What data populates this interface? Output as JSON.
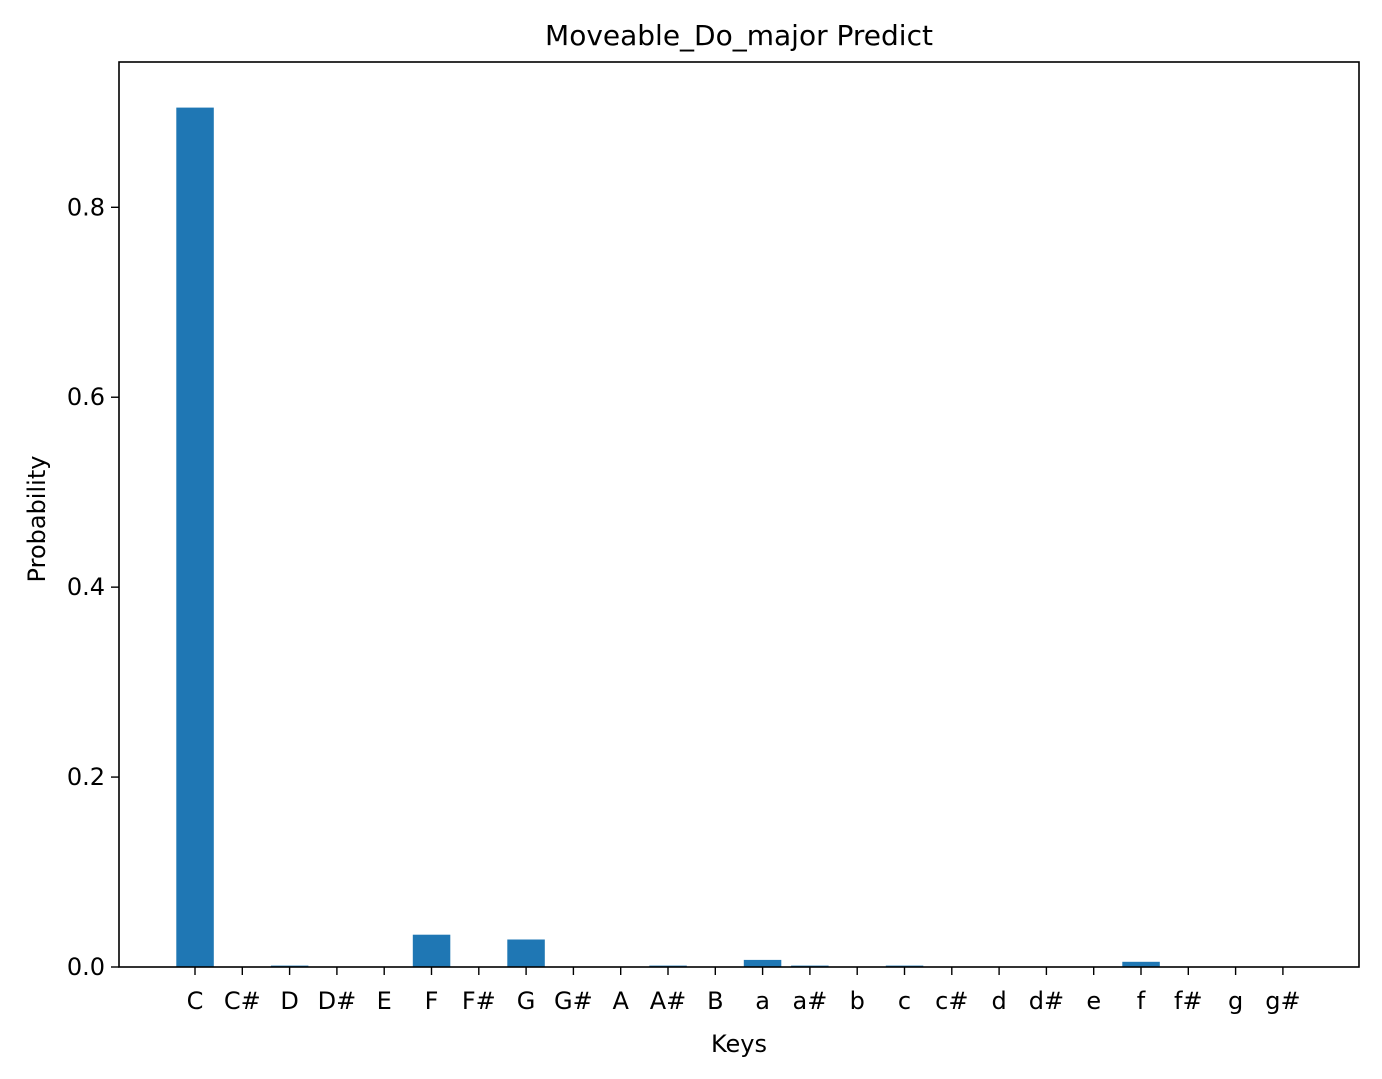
{
  "chart_data": {
    "type": "bar",
    "title": "Moveable_Do_major Predict",
    "xlabel": "Keys",
    "ylabel": "Probability",
    "categories": [
      "C",
      "C#",
      "D",
      "D#",
      "E",
      "F",
      "F#",
      "G",
      "G#",
      "A",
      "A#",
      "B",
      "a",
      "a#",
      "b",
      "c",
      "c#",
      "d",
      "d#",
      "e",
      "f",
      "f#",
      "g",
      "g#"
    ],
    "values": [
      0.905,
      0.0,
      0.0015,
      0.0,
      0.0,
      0.034,
      0.0,
      0.029,
      0.0,
      0.0,
      0.0015,
      0.0,
      0.0075,
      0.0015,
      0.0,
      0.0015,
      0.0,
      0.0,
      0.0,
      0.0,
      0.0055,
      0.0,
      0.0,
      0.0
    ],
    "yticks": [
      0.0,
      0.2,
      0.4,
      0.6,
      0.8
    ],
    "ylim": [
      0,
      0.95
    ],
    "grid": false,
    "bar_color": "#1f77b4"
  }
}
